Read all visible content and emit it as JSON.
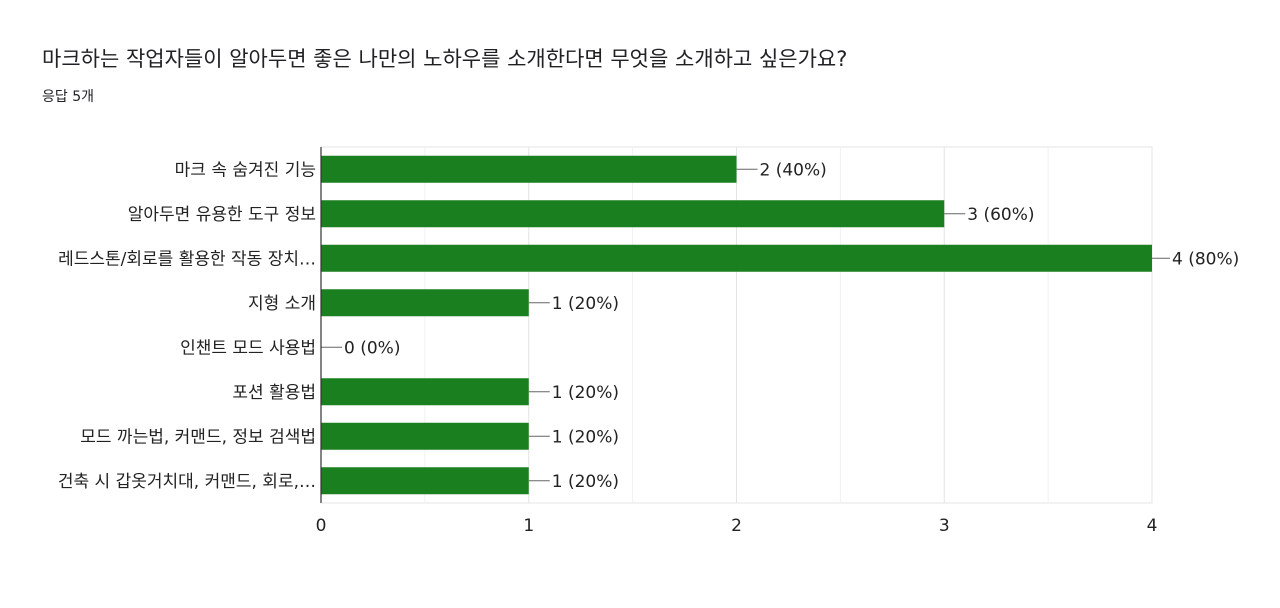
{
  "header": {
    "title": "마크하는 작업자들이 알아두면 좋은 나만의 노하우를 소개한다면 무엇을 소개하고 싶은가요?",
    "subtitle": "응답 5개"
  },
  "chart_data": {
    "type": "bar",
    "orientation": "horizontal",
    "categories": [
      "마크 속 숨겨진 기능",
      "알아두면 유용한 도구 정보",
      "레드스톤/회로를 활용한 작동 장치…",
      "지형 소개",
      "인챈트 모드 사용법",
      "포션 활용법",
      "모드 까는법, 커맨드, 정보 검색법",
      "건축 시 갑옷거치대, 커맨드, 회로,…"
    ],
    "values": [
      2,
      3,
      4,
      1,
      0,
      1,
      1,
      1
    ],
    "value_labels": [
      "2 (40%)",
      "3 (60%)",
      "4 (80%)",
      "1 (20%)",
      "0 (0%)",
      "1 (20%)",
      "1 (20%)",
      "1 (20%)"
    ],
    "xlim": [
      0,
      4
    ],
    "xticks": [
      "0",
      "1",
      "2",
      "3",
      "4"
    ],
    "grid": true,
    "bar_color": "#1a7f1e"
  }
}
